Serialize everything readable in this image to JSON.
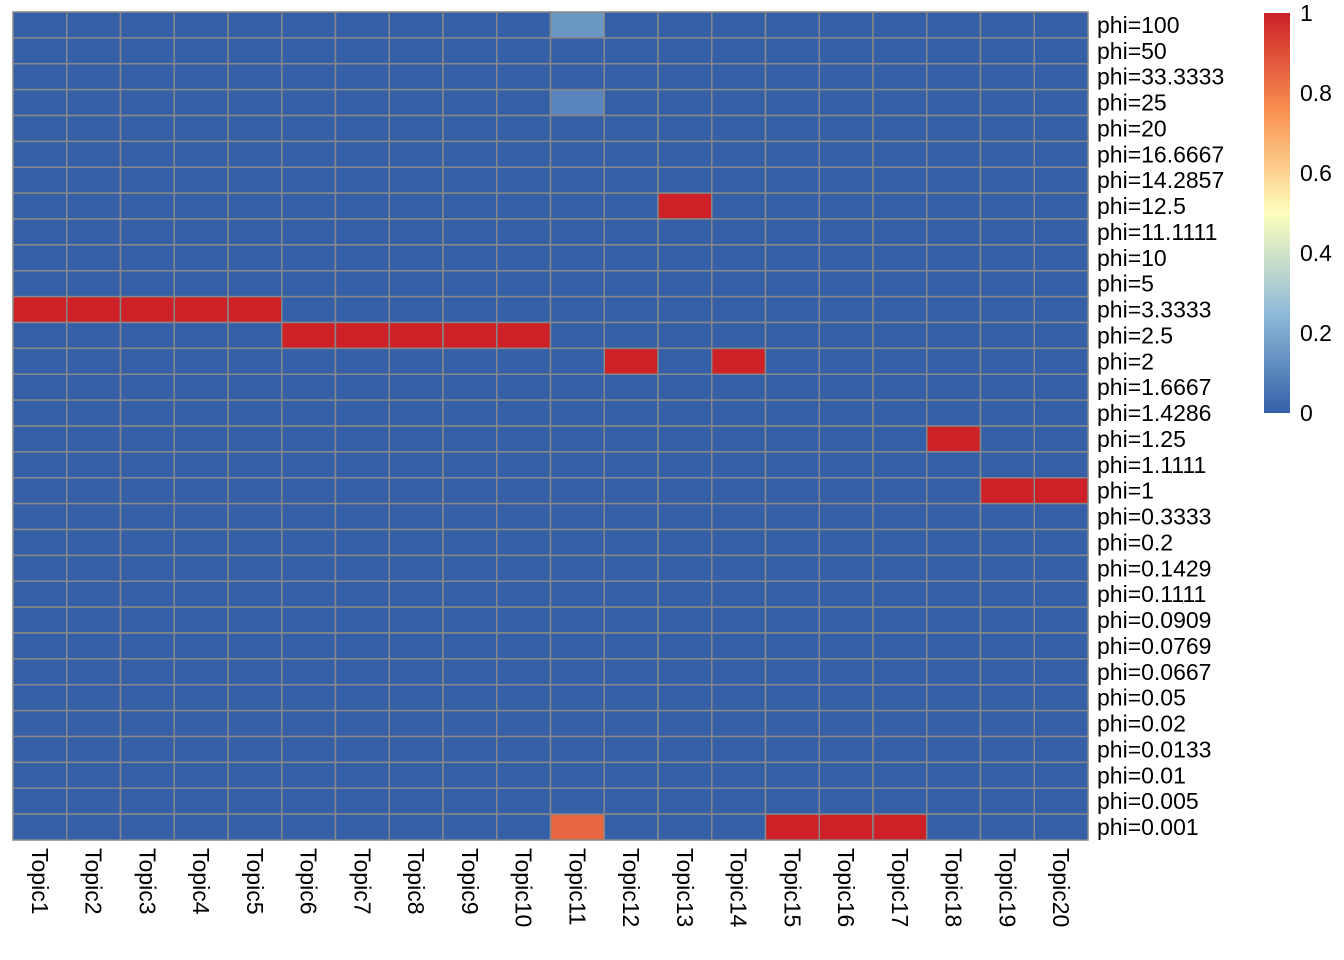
{
  "chart_data": {
    "type": "heatmap",
    "title": "",
    "xlabel": "",
    "ylabel": "",
    "columns": [
      "Topic1",
      "Topic2",
      "Topic3",
      "Topic4",
      "Topic5",
      "Topic6",
      "Topic7",
      "Topic8",
      "Topic9",
      "Topic10",
      "Topic11",
      "Topic12",
      "Topic13",
      "Topic14",
      "Topic15",
      "Topic16",
      "Topic17",
      "Topic18",
      "Topic19",
      "Topic20"
    ],
    "rows": [
      "phi=100",
      "phi=50",
      "phi=33.3333",
      "phi=25",
      "phi=20",
      "phi=16.6667",
      "phi=14.2857",
      "phi=12.5",
      "phi=11.1111",
      "phi=10",
      "phi=5",
      "phi=3.3333",
      "phi=2.5",
      "phi=2",
      "phi=1.6667",
      "phi=1.4286",
      "phi=1.25",
      "phi=1.1111",
      "phi=1",
      "phi=0.3333",
      "phi=0.2",
      "phi=0.1429",
      "phi=0.1111",
      "phi=0.0909",
      "phi=0.0769",
      "phi=0.0667",
      "phi=0.05",
      "phi=0.02",
      "phi=0.0133",
      "phi=0.01",
      "phi=0.005",
      "phi=0.001"
    ],
    "cells": [
      {
        "row": "phi=100",
        "col": "Topic11",
        "value": 0.15
      },
      {
        "row": "phi=25",
        "col": "Topic11",
        "value": 0.1
      },
      {
        "row": "phi=12.5",
        "col": "Topic13",
        "value": 1
      },
      {
        "row": "phi=3.3333",
        "col": "Topic1",
        "value": 1
      },
      {
        "row": "phi=3.3333",
        "col": "Topic2",
        "value": 1
      },
      {
        "row": "phi=3.3333",
        "col": "Topic3",
        "value": 1
      },
      {
        "row": "phi=3.3333",
        "col": "Topic4",
        "value": 1
      },
      {
        "row": "phi=3.3333",
        "col": "Topic5",
        "value": 1
      },
      {
        "row": "phi=2.5",
        "col": "Topic6",
        "value": 1
      },
      {
        "row": "phi=2.5",
        "col": "Topic7",
        "value": 1
      },
      {
        "row": "phi=2.5",
        "col": "Topic8",
        "value": 1
      },
      {
        "row": "phi=2.5",
        "col": "Topic9",
        "value": 1
      },
      {
        "row": "phi=2.5",
        "col": "Topic10",
        "value": 1
      },
      {
        "row": "phi=2",
        "col": "Topic12",
        "value": 1
      },
      {
        "row": "phi=2",
        "col": "Topic14",
        "value": 1
      },
      {
        "row": "phi=1.25",
        "col": "Topic18",
        "value": 1
      },
      {
        "row": "phi=1",
        "col": "Topic19",
        "value": 1
      },
      {
        "row": "phi=1",
        "col": "Topic20",
        "value": 1
      },
      {
        "row": "phi=0.001",
        "col": "Topic11",
        "value": 0.85
      },
      {
        "row": "phi=0.001",
        "col": "Topic15",
        "value": 1
      },
      {
        "row": "phi=0.001",
        "col": "Topic16",
        "value": 1
      },
      {
        "row": "phi=0.001",
        "col": "Topic17",
        "value": 1
      }
    ],
    "default_value": 0,
    "color_scale": {
      "min": 0,
      "max": 1,
      "stops": [
        {
          "value": 0,
          "color": "#3560a8"
        },
        {
          "value": 0.25,
          "color": "#8fbbd9"
        },
        {
          "value": 0.5,
          "color": "#fefebd"
        },
        {
          "value": 0.75,
          "color": "#f99352"
        },
        {
          "value": 1,
          "color": "#cd2027"
        }
      ],
      "ticks": [
        "0",
        "0.2",
        "0.4",
        "0.6",
        "0.8",
        "1"
      ]
    },
    "grid_color": "#888888",
    "legend_placement": "top-right"
  }
}
